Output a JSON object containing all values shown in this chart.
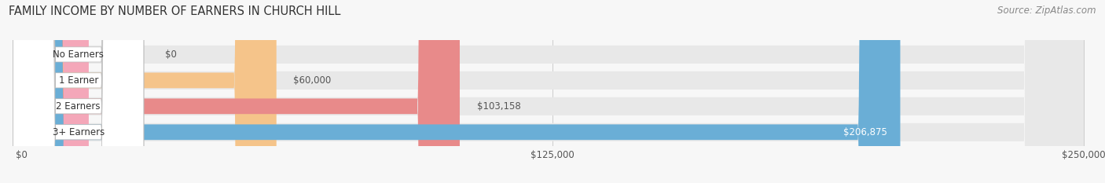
{
  "title": "FAMILY INCOME BY NUMBER OF EARNERS IN CHURCH HILL",
  "source": "Source: ZipAtlas.com",
  "categories": [
    "No Earners",
    "1 Earner",
    "2 Earners",
    "3+ Earners"
  ],
  "values": [
    0,
    60000,
    103158,
    206875
  ],
  "labels": [
    "$0",
    "$60,000",
    "$103,158",
    "$206,875"
  ],
  "bar_colors": [
    "#f4a7b9",
    "#f5c48a",
    "#e88a8a",
    "#6aaed6"
  ],
  "bar_bg_color": "#e8e8e8",
  "label_colors": [
    "#555555",
    "#555555",
    "#555555",
    "#ffffff"
  ],
  "xlim_max": 250000,
  "xticks": [
    0,
    125000,
    250000
  ],
  "xtick_labels": [
    "$0",
    "$125,000",
    "$250,000"
  ],
  "title_fontsize": 10.5,
  "source_fontsize": 8.5,
  "bar_label_fontsize": 8.5,
  "category_fontsize": 8.5,
  "figsize": [
    14.06,
    2.33
  ],
  "dpi": 100
}
